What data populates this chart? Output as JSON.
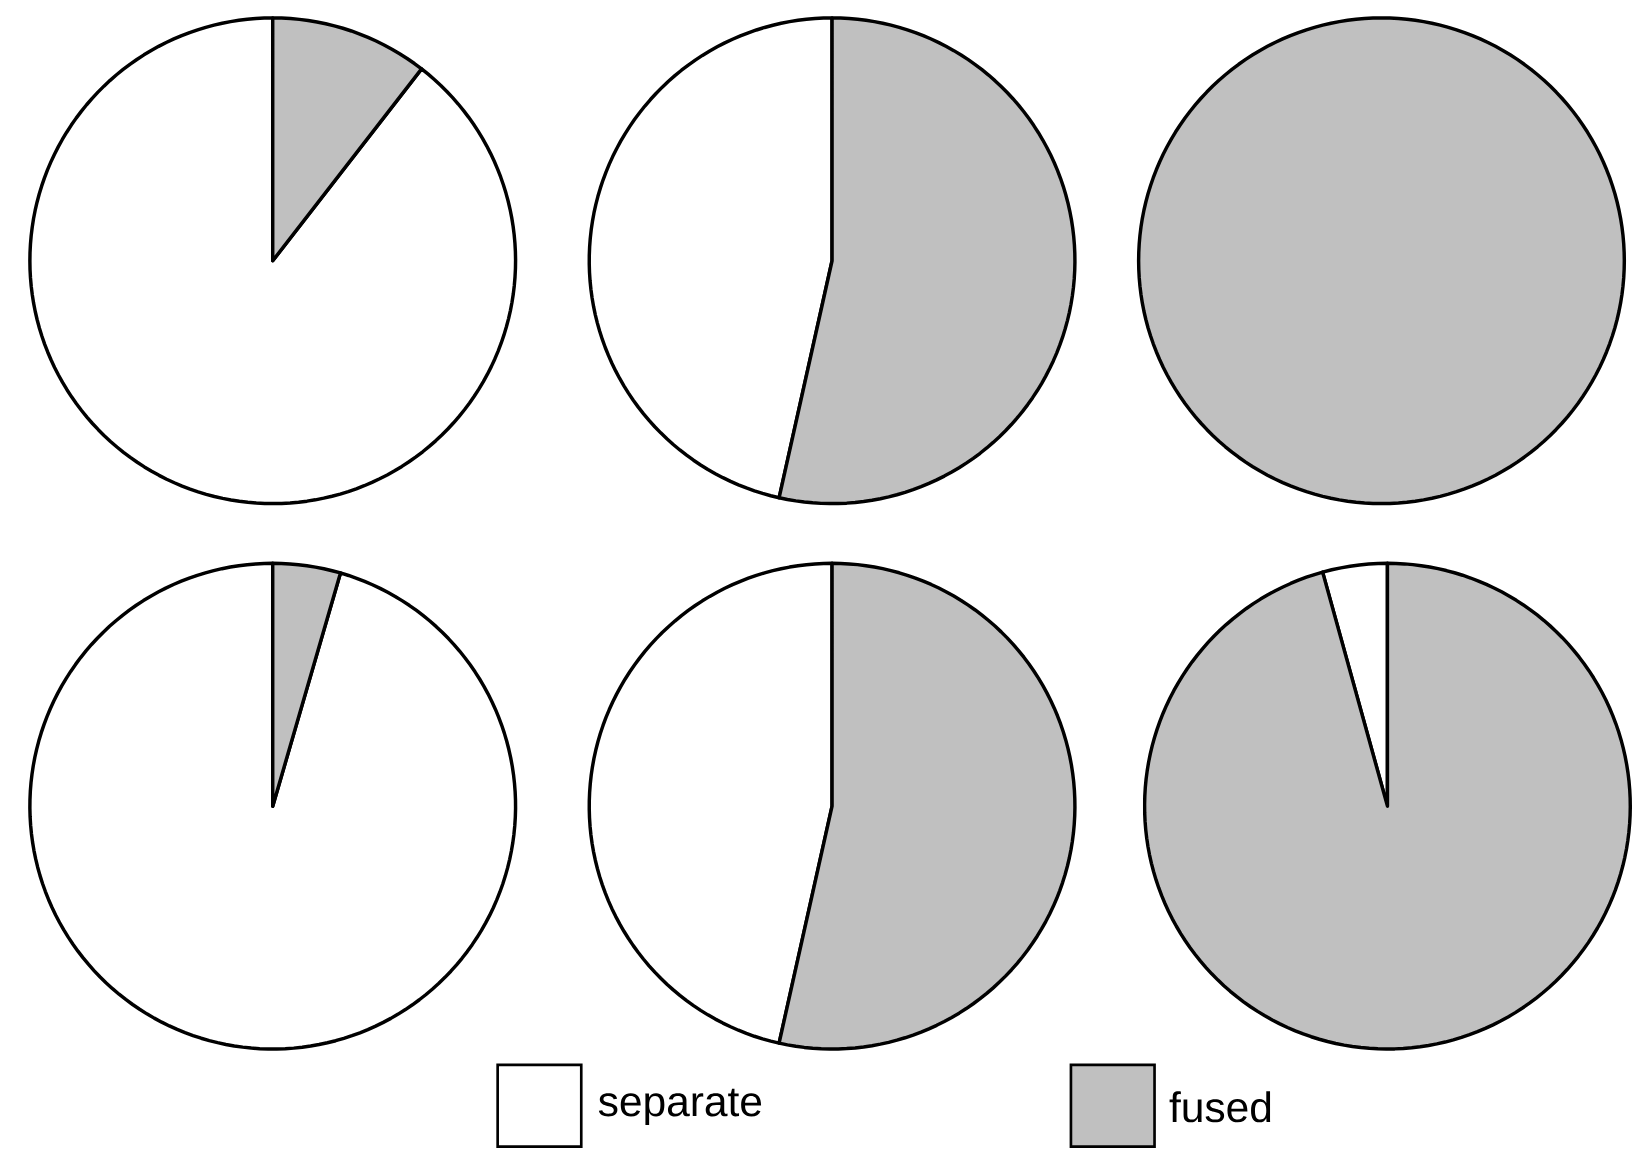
{
  "chart_data": [
    {
      "type": "pie",
      "categories": [
        null,
        null
      ],
      "values": [
        89.5,
        10.5
      ],
      "colors": [
        "#ffffff",
        "#c0c0c0"
      ]
    },
    {
      "type": "pie",
      "categories": [
        null,
        null
      ],
      "values": [
        46.5,
        53.5
      ],
      "colors": [
        "#ffffff",
        "#c0c0c0"
      ]
    },
    {
      "type": "pie",
      "categories": [
        null,
        null
      ],
      "values": [
        0,
        100
      ],
      "colors": [
        "#ffffff",
        "#c0c0c0"
      ]
    },
    {
      "type": "pie",
      "categories": [
        null,
        null
      ],
      "values": [
        95.5,
        4.5
      ],
      "colors": [
        "#ffffff",
        "#c0c0c0"
      ]
    },
    {
      "type": "pie",
      "categories": [
        null,
        null
      ],
      "values": [
        46.5,
        53.5
      ],
      "colors": [
        "#ffffff",
        "#c0c0c0"
      ]
    },
    {
      "type": "pie",
      "categories": [
        "separate",
        "fused"
      ],
      "values": [
        4.3,
        95.7
      ],
      "colors": [
        "#ffffff",
        "#c0c0c0"
      ],
      "legend": "bottom"
    }
  ]
}
